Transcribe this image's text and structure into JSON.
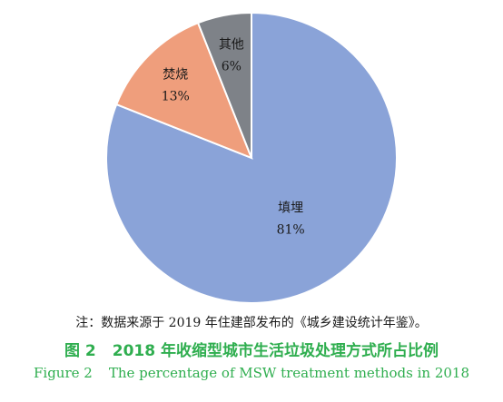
{
  "chart_data": {
    "type": "pie",
    "start_angle_deg": 0,
    "direction": "clockwise",
    "slices": [
      {
        "label": "填埋",
        "value": 81,
        "value_label": "81%",
        "color": "#8aa3d8"
      },
      {
        "label": "焚烧",
        "value": 13,
        "value_label": "13%",
        "color": "#ef9e7c"
      },
      {
        "label": "其他",
        "value": 6,
        "value_label": "6%",
        "color": "#7e8288"
      }
    ]
  },
  "note": "注：数据来源于 2019 年住建部发布的《城乡建设统计年鉴》。",
  "caption": {
    "cn_number": "图 2",
    "cn_title": "2018 年收缩型城市生活垃圾处理方式所占比例",
    "en_number": "Figure 2",
    "en_title": "The percentage of MSW treatment methods in 2018"
  }
}
